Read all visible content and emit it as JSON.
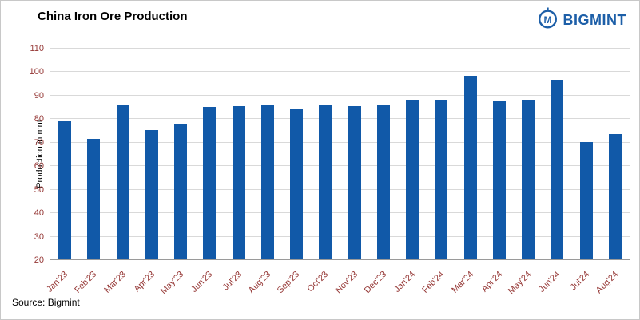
{
  "header": {
    "logo_text": "BIGMINT"
  },
  "footer": {
    "source": "Source: Bigmint"
  },
  "colors": {
    "bar": "#1159a8",
    "tick_label": "#953735",
    "logo_blue": "#1d5fa8",
    "gridline": "#d9d9d9"
  },
  "chart_data": {
    "type": "bar",
    "title": "China Iron Ore Production",
    "xlabel": "",
    "ylabel": "Production  in mnt",
    "ylim": [
      20,
      110
    ],
    "ytick_interval": 10,
    "grid": true,
    "legend": false,
    "categories": [
      "Jan'23",
      "Feb'23",
      "Mar'23",
      "Apr'23",
      "May'23",
      "Jun'23",
      "Jul'23",
      "Aug'23",
      "Sep'23",
      "Oct'23",
      "Nov'23",
      "Dec'23",
      "Jan'24",
      "Feb'24",
      "Mar'24",
      "Apr'24",
      "May'24",
      "Jun'24",
      "Jul'24",
      "Aug'24"
    ],
    "values": [
      79.0,
      71.7,
      86.4,
      75.5,
      77.6,
      85.1,
      85.6,
      86.3,
      84.2,
      86.3,
      85.7,
      86.0,
      88.1,
      88.1,
      98.4,
      88.0,
      88.4,
      96.6,
      70.4,
      73.7
    ]
  }
}
